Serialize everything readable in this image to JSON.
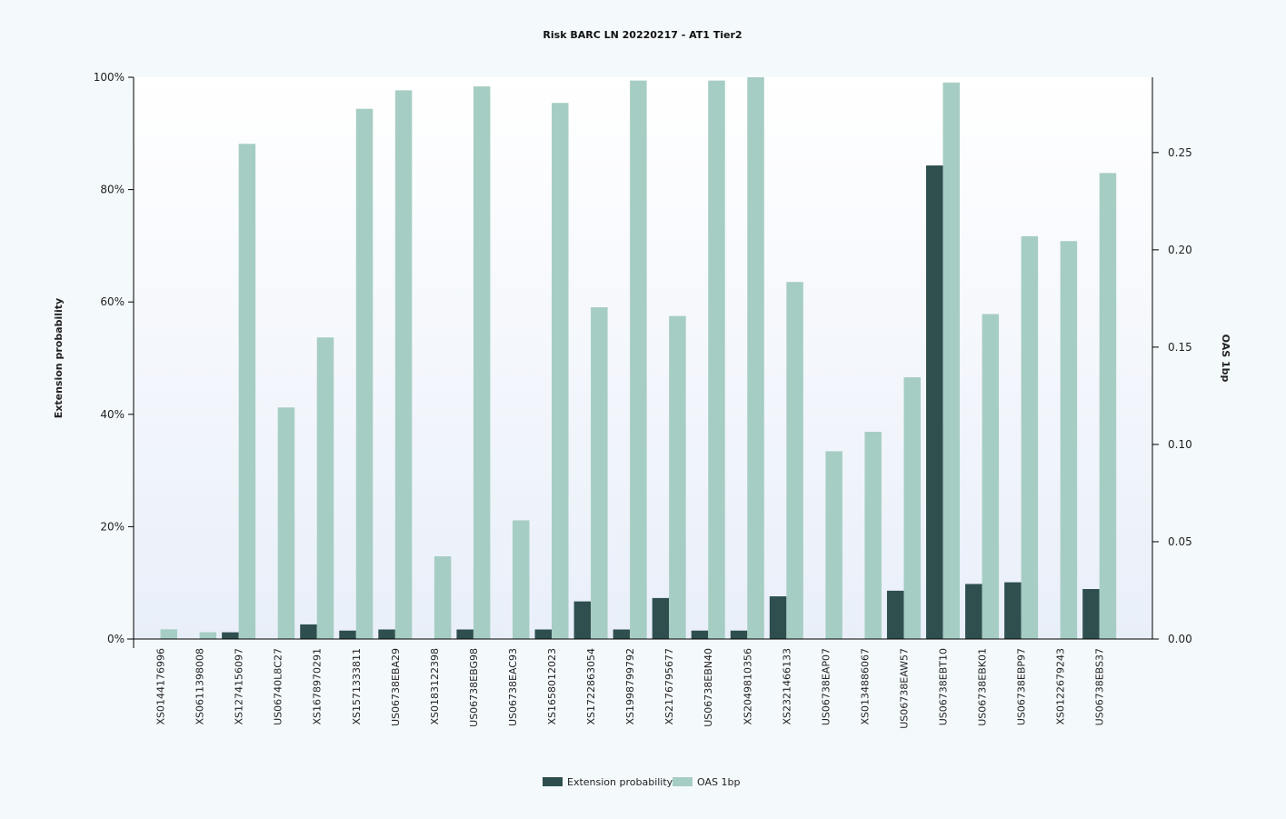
{
  "chart_data": {
    "type": "bar",
    "title": "Risk BARC LN 20220217 - AT1 Tier2",
    "ylabel": "Extension probability",
    "y2label": "OAS 1bp",
    "ylim": [
      0,
      1
    ],
    "y2lim": [
      0,
      0.2887
    ],
    "yticks": [
      "0%",
      "20%",
      "40%",
      "60%",
      "80%",
      "100%"
    ],
    "y2ticks": [
      "0.00",
      "0.05",
      "0.10",
      "0.15",
      "0.20",
      "0.25"
    ],
    "legend_position": "bottom",
    "colors": {
      "extension": "#2f4f4f",
      "oas": "#a6cdc3",
      "plot_bg_top": "#ffffff",
      "plot_bg_bottom": "#e9eff9"
    },
    "categories": [
      "XS0144176996",
      "XS0611398008",
      "XS1274156097",
      "US06740L8C27",
      "XS1678970291",
      "XS1571333811",
      "US06738EBA29",
      "XS0183122398",
      "US06738EBG98",
      "US06738EAC93",
      "XS1658012023",
      "XS1722863054",
      "XS1998799792",
      "XS2176795677",
      "US06738EBN40",
      "XS2049810356",
      "XS2321466133",
      "US06738EAP07",
      "XS0134886067",
      "US06738EAW57",
      "US06738EBT10",
      "US06738EBK01",
      "US06738EBP97",
      "XS0122679243",
      "US06738EBS37"
    ],
    "series": [
      {
        "name": "Extension probability",
        "axis": "left",
        "values": [
          0,
          0,
          0.012,
          0,
          0.026,
          0.015,
          0.017,
          0,
          0.017,
          0,
          0.017,
          0.067,
          0.017,
          0.073,
          0.015,
          0.015,
          0.076,
          0,
          0,
          0.086,
          0.843,
          0.098,
          0.101,
          0,
          0.089
        ]
      },
      {
        "name": "OAS 1bp",
        "axis": "right",
        "values": [
          0.005,
          0.0035,
          0.2545,
          0.119,
          0.155,
          0.2725,
          0.282,
          0.0425,
          0.284,
          0.061,
          0.2755,
          0.1705,
          0.287,
          0.166,
          0.287,
          0.2887,
          0.1835,
          0.0965,
          0.1065,
          0.1345,
          0.286,
          0.167,
          0.207,
          0.2045,
          0.2395
        ]
      }
    ]
  }
}
